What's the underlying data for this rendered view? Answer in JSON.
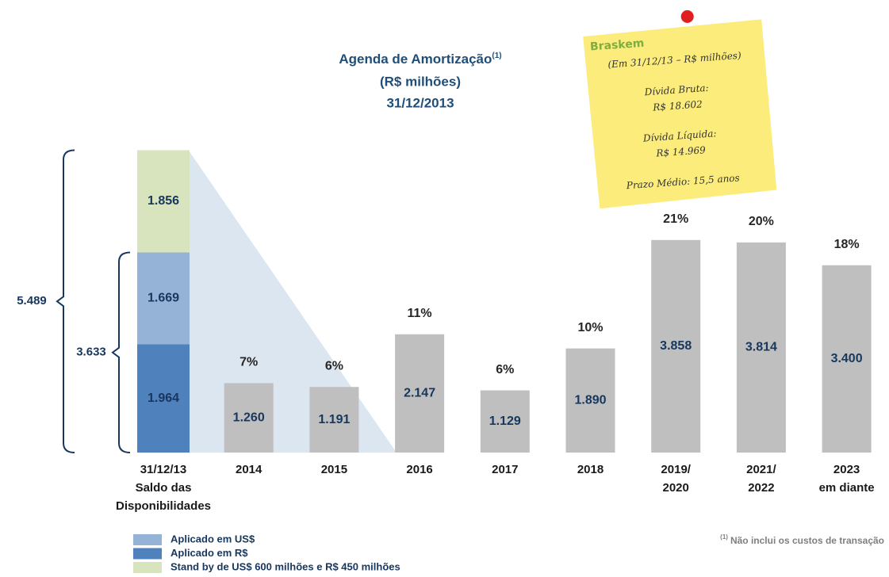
{
  "chart_data": {
    "type": "bar",
    "title": "Agenda de Amortização",
    "title_note": "(1)",
    "subtitle": "(R$ milhões)",
    "date": "31/12/2013",
    "categories": [
      [
        "31/12/13",
        "Saldo das",
        "Disponibilidades"
      ],
      [
        "2014"
      ],
      [
        "2015"
      ],
      [
        "2016"
      ],
      [
        "2017"
      ],
      [
        "2018"
      ],
      [
        "2019/",
        "2020"
      ],
      [
        "2021/",
        "2022"
      ],
      [
        "2023",
        "em diante"
      ]
    ],
    "series": [
      {
        "name": "Aplicado em US$",
        "color": "#95b3d7",
        "values": [
          1669,
          null,
          null,
          null,
          null,
          null,
          null,
          null,
          null
        ],
        "value_labels": [
          "1.669",
          null,
          null,
          null,
          null,
          null,
          null,
          null,
          null
        ]
      },
      {
        "name": "Aplicado em R$",
        "color": "#4f81bd",
        "values": [
          1964,
          null,
          null,
          null,
          null,
          null,
          null,
          null,
          null
        ],
        "value_labels": [
          "1.964",
          null,
          null,
          null,
          null,
          null,
          null,
          null,
          null
        ]
      },
      {
        "name": "Stand by de US$ 600 milhões e R$ 450 milhões",
        "color": "#d7e4bd",
        "values": [
          1856,
          null,
          null,
          null,
          null,
          null,
          null,
          null,
          null
        ],
        "value_labels": [
          "1.856",
          null,
          null,
          null,
          null,
          null,
          null,
          null,
          null
        ]
      }
    ],
    "amortization": {
      "color": "#bfbfbf",
      "values": [
        null,
        1260,
        1191,
        2147,
        1129,
        1890,
        3858,
        3814,
        3400
      ],
      "value_labels": [
        null,
        "1.260",
        "1.191",
        "2.147",
        "1.129",
        "1.890",
        "3.858",
        "3.814",
        "3.400"
      ],
      "shares": [
        null,
        7,
        6,
        11,
        6,
        10,
        21,
        20,
        18
      ],
      "share_labels": [
        null,
        "7%",
        "6%",
        "11%",
        "6%",
        "10%",
        "21%",
        "20%",
        "18%"
      ]
    },
    "totals": [
      {
        "value": 5489,
        "label": "5.489"
      },
      {
        "value": 3633,
        "label": "3.633"
      }
    ],
    "note": {
      "brand": "Braskem",
      "basis": "(Em 31/12/13 – R$ milhões)",
      "gross_debt_label": "Dívida Bruta:",
      "gross_debt": "R$ 18.602",
      "net_debt_label": "Dívida Líquida:",
      "net_debt": "R$ 14.969",
      "term": "Prazo Médio: 15,5 anos"
    },
    "footnote_mark": "(1)",
    "footnote": "Não inclui os custos de transação"
  }
}
